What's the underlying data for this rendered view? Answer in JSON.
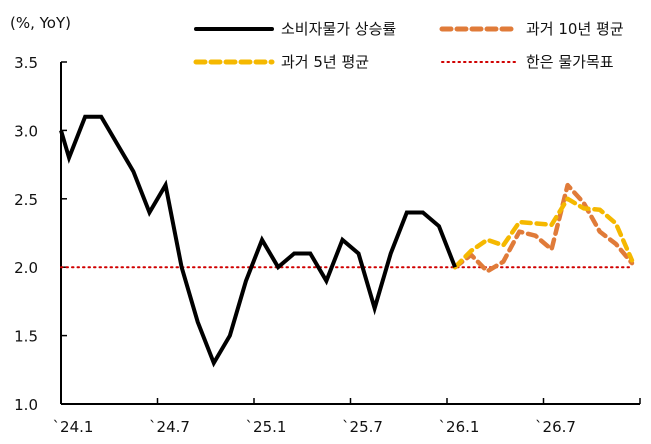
{
  "chart_data": {
    "type": "line",
    "title": "",
    "ylabel": "(%, YoY)",
    "xlabel": "",
    "ylim": [
      1.0,
      3.5
    ],
    "yticks": [
      1.0,
      1.5,
      2.0,
      2.5,
      3.0,
      3.5
    ],
    "ytick_labels": [
      "1.0",
      "1.5",
      "2.0",
      "2.5",
      "3.0",
      "3.5"
    ],
    "xtick_labels": [
      "`24.1",
      "`24.7",
      "`25.1",
      "`25.7",
      "`26.1",
      "`26.7"
    ],
    "grid": false,
    "legend_position": "top",
    "x": [
      "24.1",
      "24.2",
      "24.3",
      "24.4",
      "24.5",
      "24.6",
      "24.7",
      "24.8",
      "24.9",
      "24.10",
      "24.11",
      "24.12",
      "25.1",
      "25.2",
      "25.3",
      "25.4",
      "25.5",
      "25.6",
      "25.7",
      "25.8",
      "25.9",
      "25.10",
      "25.11",
      "25.12",
      "26.1",
      "26.2",
      "26.3",
      "26.4",
      "26.5",
      "26.6",
      "26.7",
      "26.8",
      "26.9",
      "26.10",
      "26.11",
      "26.12"
    ],
    "series": [
      {
        "name": "소비자물가 상승률",
        "style": "solid",
        "color": "#000000",
        "lead_in_value": 3.2,
        "values": [
          2.8,
          3.1,
          3.1,
          2.9,
          2.7,
          2.4,
          2.6,
          2.0,
          1.6,
          1.3,
          1.5,
          1.9,
          2.2,
          2.0,
          2.1,
          2.1,
          1.9,
          2.2,
          2.1,
          1.7,
          2.1,
          2.4,
          2.4,
          2.3,
          2.0,
          null,
          null,
          null,
          null,
          null,
          null,
          null,
          null,
          null,
          null,
          null
        ]
      },
      {
        "name": "과거 10년 평균",
        "style": "dashed",
        "color": "#E07B39",
        "values": [
          null,
          null,
          null,
          null,
          null,
          null,
          null,
          null,
          null,
          null,
          null,
          null,
          null,
          null,
          null,
          null,
          null,
          null,
          null,
          null,
          null,
          null,
          null,
          null,
          2.0,
          2.09,
          1.97,
          2.04,
          2.26,
          2.23,
          2.13,
          2.6,
          2.47,
          2.26,
          2.17,
          2.03
        ]
      },
      {
        "name": "과거 5년 평균",
        "style": "dashed",
        "color": "#F5B800",
        "values": [
          null,
          null,
          null,
          null,
          null,
          null,
          null,
          null,
          null,
          null,
          null,
          null,
          null,
          null,
          null,
          null,
          null,
          null,
          null,
          null,
          null,
          null,
          null,
          null,
          2.0,
          2.12,
          2.2,
          2.16,
          2.33,
          2.32,
          2.31,
          2.5,
          2.43,
          2.42,
          2.32,
          2.05
        ]
      },
      {
        "name": "한은 물가목표",
        "style": "dotted",
        "color": "#D00000",
        "constant": 2.0
      }
    ]
  },
  "legend": [
    {
      "label": "소비자물가 상승률",
      "key": "cpi"
    },
    {
      "label": "과거 10년 평균",
      "key": "avg10"
    },
    {
      "label": "과거 5년 평균",
      "key": "avg5"
    },
    {
      "label": "한은 물가목표",
      "key": "target"
    }
  ]
}
